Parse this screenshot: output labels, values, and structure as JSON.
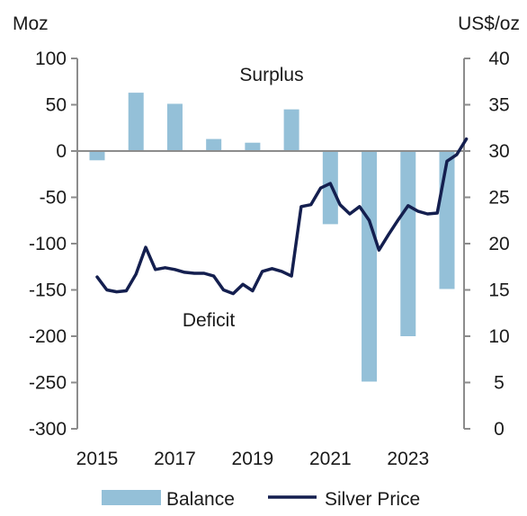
{
  "chart_data": {
    "type": "bar+line",
    "left_axis": {
      "unit_label": "Moz",
      "ylim": [
        -300,
        100
      ],
      "ticks": [
        "100",
        "50",
        "0",
        "-50",
        "-100",
        "-150",
        "-200",
        "-250",
        "-300"
      ]
    },
    "right_axis": {
      "unit_label": "US$/oz",
      "ylim": [
        0,
        40
      ],
      "ticks": [
        "40",
        "35",
        "30",
        "25",
        "20",
        "15",
        "10",
        "5",
        "0"
      ]
    },
    "x_tick_labels": [
      "2015",
      "2017",
      "2019",
      "2021",
      "2023"
    ],
    "bar_series": {
      "name": "Balance",
      "color": "#94c0d8",
      "x": [
        2015,
        2016,
        2017,
        2018,
        2019,
        2020,
        2021,
        2022,
        2023,
        2024
      ],
      "values": [
        -10,
        63,
        51,
        13,
        9,
        45,
        -79,
        -249,
        -200,
        -149
      ]
    },
    "line_series": {
      "name": "Silver Price",
      "color": "#141f4f",
      "x": [
        2015.0,
        2015.25,
        2015.5,
        2015.75,
        2016.0,
        2016.25,
        2016.5,
        2016.75,
        2017.0,
        2017.25,
        2017.5,
        2017.75,
        2018.0,
        2018.25,
        2018.5,
        2018.75,
        2019.0,
        2019.25,
        2019.5,
        2019.75,
        2020.0,
        2020.25,
        2020.5,
        2020.75,
        2021.0,
        2021.25,
        2021.5,
        2021.75,
        2022.0,
        2022.25,
        2022.5,
        2022.75,
        2023.0,
        2023.25,
        2023.5,
        2023.75,
        2024.0,
        2024.25,
        2024.5
      ],
      "values": [
        16.4,
        15.0,
        14.8,
        14.9,
        16.7,
        19.6,
        17.2,
        17.4,
        17.2,
        16.9,
        16.8,
        16.8,
        16.5,
        15.0,
        14.6,
        15.6,
        14.9,
        17.0,
        17.3,
        17.0,
        16.5,
        24.0,
        24.2,
        26.0,
        26.5,
        24.2,
        23.2,
        24.0,
        22.5,
        19.3,
        21.0,
        22.6,
        24.1,
        23.5,
        23.2,
        23.3,
        28.9,
        29.6,
        31.3
      ]
    },
    "annotations": [
      "Surplus",
      "Deficit"
    ],
    "legend": {
      "placement": "bottom",
      "items": [
        "Balance",
        "Silver Price"
      ]
    },
    "grid": false
  }
}
